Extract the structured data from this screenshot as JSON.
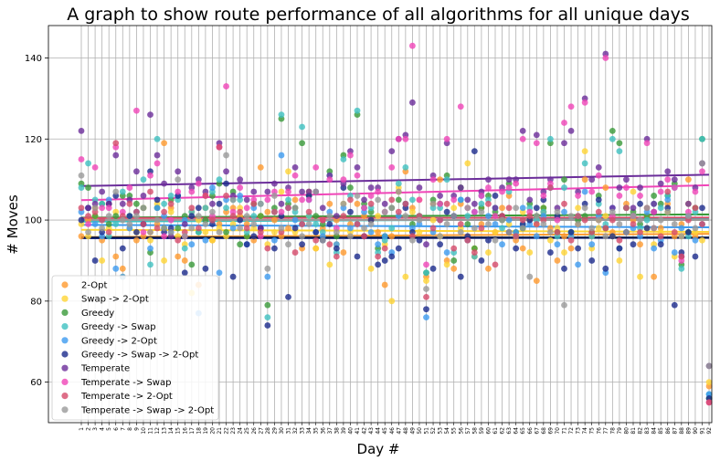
{
  "chart_data": {
    "type": "scatter",
    "title": "A graph to show route performance of all algorithms for all unique days",
    "xlabel": "Day #",
    "ylabel": "# Moves",
    "x_categories": [
      "1",
      "2",
      "3",
      "4",
      "5",
      "6",
      "7",
      "8",
      "9",
      "10",
      "11",
      "12",
      "13",
      "14",
      "15",
      "16",
      "17",
      "18",
      "19",
      "20",
      "21",
      "22",
      "23",
      "24",
      "25",
      "26",
      "27",
      "28",
      "29",
      "30",
      "31",
      "32",
      "33",
      "34",
      "35",
      "36",
      "37",
      "38",
      "39",
      "40",
      "41",
      "42",
      "43",
      "44",
      "45",
      "46",
      "47",
      "48",
      "49",
      "50",
      "51",
      "52",
      "53",
      "54",
      "55",
      "56",
      "57",
      "58",
      "59",
      "60",
      "61",
      "62",
      "63",
      "64",
      "65",
      "66",
      "67",
      "68",
      "69",
      "70",
      "71",
      "72",
      "73",
      "74",
      "75",
      "76",
      "77",
      "78",
      "79",
      "80",
      "81",
      "82",
      "83",
      "84",
      "85",
      "86",
      "87",
      "88",
      "89",
      "90",
      "91",
      "92"
    ],
    "ylim": [
      50,
      148
    ],
    "yticks": [
      60,
      80,
      100,
      120,
      140
    ],
    "grid": true,
    "legend_position": "lower-left",
    "series": [
      {
        "name": "2-Opt",
        "color": "#ff9a2e",
        "trend": [
          95.8,
          96.6
        ],
        "values": [
          96,
          100,
          103,
          95,
          104,
          91,
          88,
          98,
          95,
          96,
          97,
          99,
          119,
          103,
          91,
          90,
          102,
          84,
          103,
          95,
          99,
          102,
          103,
          101,
          99,
          95,
          113,
          102,
          100,
          96,
          98,
          105,
          93,
          107,
          93,
          98,
          104,
          100,
          92,
          99,
          104,
          101,
          100,
          97,
          84,
          96,
          107,
          112,
          103,
          105,
          86,
          104,
          110,
          90,
          88,
          104,
          95,
          91,
          99,
          88,
          97,
          103,
          106,
          95,
          93,
          100,
          85,
          102,
          98,
          90,
          96,
          93,
          99,
          110,
          96,
          100,
          108,
          97,
          93,
          104,
          100,
          94,
          101,
          86,
          98,
          104,
          96,
          99,
          110,
          96,
          99,
          59
        ]
      },
      {
        "name": "Swap -> 2-Opt",
        "color": "#ffd535",
        "trend": [
          97.6,
          97.1
        ],
        "values": [
          99,
          96,
          101,
          90,
          98,
          102,
          86,
          101,
          97,
          103,
          95,
          104,
          90,
          102,
          96,
          94,
          82,
          100,
          97,
          95,
          98,
          96,
          99,
          103,
          96,
          98,
          101,
          94,
          97,
          107,
          112,
          97,
          99,
          101,
          93,
          100,
          89,
          94,
          104,
          97,
          99,
          103,
          88,
          101,
          94,
          80,
          108,
          86,
          102,
          97,
          85,
          100,
          96,
          89,
          103,
          98,
          114,
          93,
          103,
          92,
          97,
          101,
          99,
          96,
          102,
          92,
          99,
          103,
          95,
          98,
          92,
          96,
          103,
          117,
          93,
          98,
          101,
          96,
          90,
          103,
          107,
          86,
          98,
          94,
          97,
          102,
          91,
          96,
          104,
          97,
          95,
          60
        ]
      },
      {
        "name": "Greedy",
        "color": "#3a9a3a",
        "trend": [
          100.6,
          101.4
        ],
        "values": [
          109,
          108,
          101,
          104,
          99,
          101,
          106,
          106,
          104,
          103,
          92,
          103,
          98,
          105,
          98,
          101,
          89,
          97,
          100,
          106,
          109,
          97,
          107,
          94,
          96,
          104,
          101,
          79,
          103,
          125,
          104,
          103,
          119,
          106,
          101,
          99,
          112,
          96,
          116,
          108,
          126,
          104,
          102,
          93,
          96,
          103,
          105,
          104,
          99,
          101,
          87,
          105,
          104,
          111,
          90,
          108,
          99,
          93,
          103,
          106,
          102,
          100,
          109,
          97,
          98,
          104,
          101,
          103,
          119,
          97,
          110,
          97,
          100,
          101,
          97,
          106,
          98,
          122,
          119,
          103,
          102,
          99,
          101,
          106,
          104,
          106,
          109,
          89,
          97,
          103,
          120,
          56
        ]
      },
      {
        "name": "Greedy -> Swap",
        "color": "#3ec0c0",
        "trend": [
          99.6,
          100.3
        ],
        "values": [
          108,
          114,
          105,
          104,
          96,
          99,
          107,
          101,
          102,
          110,
          89,
          120,
          104,
          106,
          105,
          93,
          102,
          97,
          103,
          107,
          110,
          103,
          105,
          105,
          97,
          101,
          104,
          76,
          102,
          126,
          105,
          102,
          123,
          101,
          99,
          97,
          111,
          92,
          115,
          106,
          127,
          103,
          103,
          92,
          95,
          98,
          109,
          113,
          105,
          101,
          87,
          103,
          103,
          110,
          92,
          105,
          101,
          91,
          104,
          105,
          103,
          98,
          107,
          96,
          99,
          103,
          100,
          102,
          120,
          96,
          108,
          97,
          101,
          114,
          96,
          104,
          99,
          120,
          117,
          103,
          101,
          98,
          100,
          104,
          103,
          106,
          108,
          88,
          96,
          102,
          120,
          57
        ]
      },
      {
        "name": "Greedy -> 2-Opt",
        "color": "#3d9bf0",
        "trend": [
          98.8,
          98.2
        ],
        "values": [
          102,
          103,
          99,
          96,
          105,
          88,
          86,
          98,
          102,
          99,
          93,
          103,
          101,
          97,
          106,
          100,
          94,
          77,
          95,
          108,
          87,
          105,
          98,
          106,
          94,
          103,
          98,
          86,
          95,
          116,
          103,
          100,
          99,
          105,
          97,
          96,
          102,
          94,
          103,
          98,
          99,
          102,
          97,
          94,
          96,
          92,
          101,
          104,
          98,
          99,
          76,
          97,
          100,
          92,
          101,
          105,
          95,
          102,
          106,
          101,
          99,
          94,
          100,
          97,
          103,
          99,
          96,
          101,
          108,
          94,
          102,
          96,
          89,
          107,
          94,
          101,
          87,
          103,
          93,
          97,
          98,
          96,
          102,
          93,
          95,
          105,
          92,
          98,
          101,
          95,
          99,
          57
        ]
      },
      {
        "name": "Greedy -> Swap -> 2-Opt",
        "color": "#1c2a8c",
        "trend": [
          95.5,
          95.6
        ],
        "values": [
          100,
          103,
          90,
          97,
          104,
          106,
          93,
          101,
          97,
          99,
          112,
          105,
          97,
          98,
          106,
          87,
          101,
          103,
          88,
          99,
          104,
          109,
          86,
          100,
          94,
          96,
          98,
          74,
          93,
          101,
          81,
          98,
          94,
          106,
          97,
          95,
          99,
          93,
          108,
          102,
          91,
          96,
          100,
          89,
          90,
          91,
          93,
          103,
          97,
          95,
          78,
          88,
          94,
          102,
          101,
          86,
          96,
          117,
          90,
          95,
          106,
          101,
          97,
          93,
          99,
          100,
          103,
          105,
          92,
          101,
          88,
          97,
          93,
          104,
          90,
          105,
          88,
          96,
          93,
          97,
          94,
          104,
          98,
          102,
          94,
          103,
          79,
          92,
          97,
          91,
          103,
          56
        ]
      },
      {
        "name": "Temperate",
        "color": "#6b2d9a",
        "trend": [
          108.4,
          111.2
        ],
        "values": [
          122,
          103,
          104,
          107,
          104,
          116,
          104,
          105,
          112,
          106,
          126,
          116,
          109,
          96,
          112,
          99,
          108,
          110,
          107,
          104,
          119,
          112,
          106,
          110,
          105,
          107,
          98,
          107,
          109,
          104,
          108,
          113,
          107,
          107,
          107,
          103,
          111,
          101,
          109,
          117,
          113,
          105,
          108,
          108,
          104,
          117,
          120,
          121,
          129,
          108,
          94,
          111,
          106,
          119,
          106,
          108,
          105,
          104,
          107,
          110,
          103,
          108,
          110,
          110,
          122,
          105,
          121,
          107,
          110,
          103,
          119,
          122,
          107,
          130,
          110,
          113,
          141,
          103,
          108,
          110,
          103,
          108,
          120,
          104,
          109,
          112,
          110,
          91,
          104,
          108,
          114,
          64
        ]
      },
      {
        "name": "Temperate -> Swap",
        "color": "#f045b8",
        "trend": [
          104.9,
          108.6
        ],
        "values": [
          115,
          99,
          113,
          103,
          103,
          118,
          102,
          108,
          127,
          97,
          111,
          114,
          96,
          100,
          107,
          96,
          107,
          109,
          106,
          101,
          118,
          133,
          102,
          108,
          103,
          105,
          96,
          105,
          107,
          102,
          107,
          111,
          105,
          105,
          113,
          100,
          110,
          98,
          110,
          116,
          111,
          103,
          106,
          107,
          102,
          113,
          120,
          120,
          143,
          105,
          89,
          110,
          104,
          120,
          105,
          128,
          103,
          102,
          106,
          108,
          101,
          107,
          108,
          109,
          120,
          102,
          119,
          106,
          109,
          100,
          124,
          128,
          106,
          129,
          107,
          111,
          140,
          101,
          106,
          108,
          101,
          106,
          119,
          102,
          107,
          110,
          108,
          90,
          102,
          107,
          112,
          55
        ]
      },
      {
        "name": "Temperate -> 2-Opt",
        "color": "#d64a6a",
        "trend": [
          100.5,
          100.6
        ],
        "values": [
          103,
          101,
          102,
          100,
          97,
          119,
          101,
          104,
          102,
          99,
          107,
          98,
          102,
          104,
          95,
          97,
          103,
          98,
          106,
          100,
          118,
          106,
          101,
          102,
          98,
          104,
          97,
          93,
          102,
          97,
          103,
          92,
          99,
          102,
          95,
          100,
          94,
          91,
          101,
          105,
          99,
          96,
          104,
          91,
          93,
          105,
          102,
          104,
          96,
          101,
          81,
          98,
          100,
          104,
          93,
          99,
          95,
          92,
          98,
          104,
          89,
          101,
          103,
          96,
          100,
          101,
          99,
          100,
          108,
          97,
          104,
          95,
          101,
          100,
          97,
          102,
          98,
          100,
          95,
          103,
          99,
          97,
          103,
          98,
          96,
          107,
          97,
          91,
          100,
          103,
          99,
          55
        ]
      },
      {
        "name": "Temperate -> Swap -> 2-Opt",
        "color": "#9a9a9a",
        "trend": [
          100.0,
          100.0
        ],
        "values": [
          111,
          97,
          103,
          98,
          101,
          107,
          100,
          99,
          101,
          103,
          97,
          100,
          98,
          97,
          110,
          96,
          98,
          101,
          99,
          102,
          97,
          116,
          105,
          98,
          101,
          99,
          104,
          88,
          106,
          98,
          94,
          103,
          96,
          99,
          107,
          95,
          101,
          97,
          104,
          96,
          106,
          98,
          99,
          105,
          102,
          103,
          107,
          101,
          95,
          100,
          83,
          104,
          96,
          99,
          101,
          97,
          103,
          98,
          102,
          99,
          95,
          100,
          97,
          103,
          98,
          86,
          101,
          99,
          97,
          102,
          79,
          101,
          99,
          103,
          98,
          100,
          96,
          102,
          99,
          97,
          101,
          100,
          103,
          98,
          100,
          102,
          99,
          96,
          101,
          98,
          114,
          64
        ]
      }
    ]
  }
}
